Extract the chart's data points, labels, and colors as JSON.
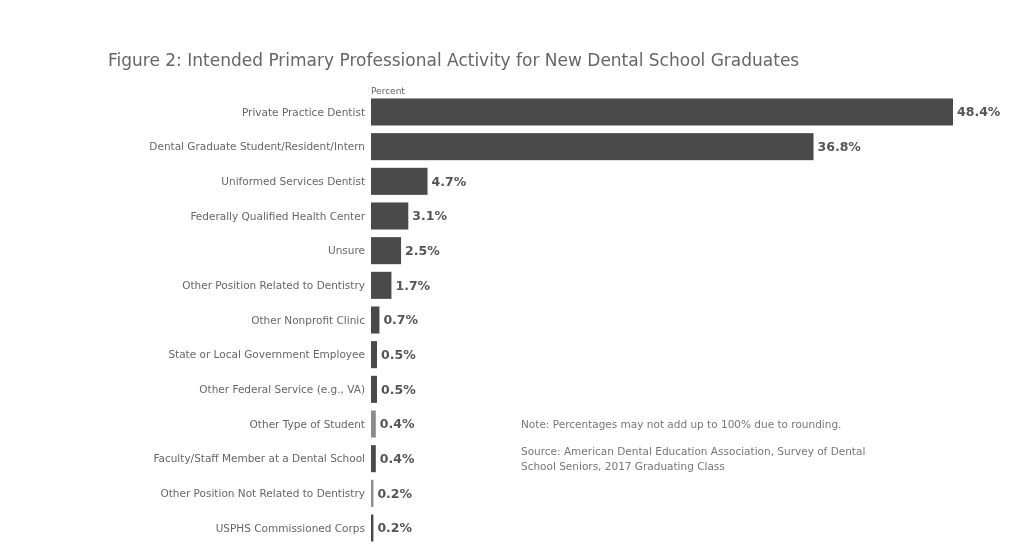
{
  "chart_data": {
    "type": "bar",
    "orientation": "horizontal",
    "title": "Figure 2: Intended Primary Professional Activity for New Dental School Graduates",
    "xlabel": "Percent",
    "categories": [
      "Private Practice Dentist",
      "Dental Graduate Student/Resident/Intern",
      "Uniformed Services Dentist",
      "Federally Qualified Health Center",
      "Unsure",
      "Other Position Related to Dentistry",
      "Other Nonprofit Clinic",
      "State or Local Government Employee",
      "Other Federal Service (e.g., VA)",
      "Other Type of Student",
      "Faculty/Staff Member at a Dental School",
      "Other Position Not Related to Dentistry",
      "USPHS Commissioned Corps"
    ],
    "values": [
      48.4,
      36.8,
      4.7,
      3.1,
      2.5,
      1.7,
      0.7,
      0.5,
      0.5,
      0.4,
      0.4,
      0.2,
      0.2
    ],
    "value_labels": [
      "48.4%",
      "36.8%",
      "4.7%",
      "3.1%",
      "2.5%",
      "1.7%",
      "0.7%",
      "0.5%",
      "0.5%",
      "0.4%",
      "0.4%",
      "0.2%",
      "0.2%"
    ],
    "colors": [
      "#4a4a4a",
      "#4a4a4a",
      "#4a4a4a",
      "#4a4a4a",
      "#4a4a4a",
      "#4a4a4a",
      "#4a4a4a",
      "#4a4a4a",
      "#4a4a4a",
      "#8c8c8c",
      "#4a4a4a",
      "#8c8c8c",
      "#4a4a4a"
    ],
    "annotations": [
      "Note: Percentages may not add up to 100% due to rounding.",
      "Source: American Dental Education Association, Survey of Dental School Seniors, 2017 Graduating Class"
    ],
    "grid": false
  }
}
